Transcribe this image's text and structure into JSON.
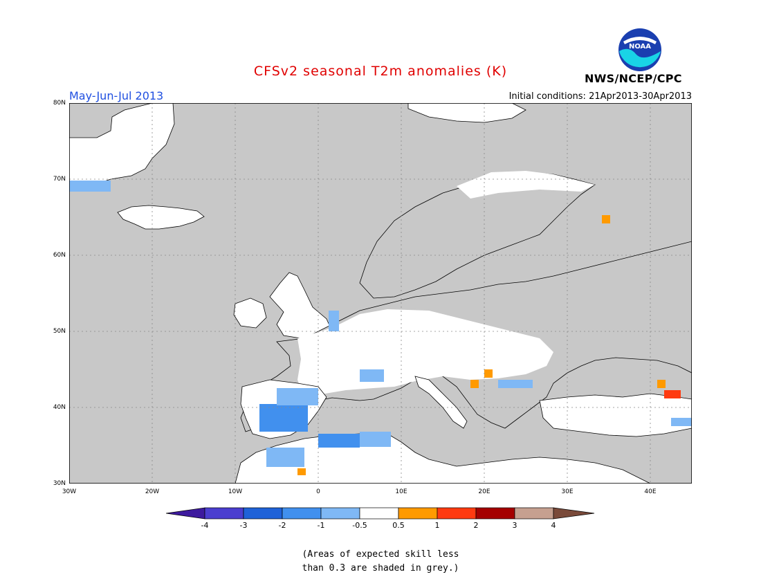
{
  "title": "CFSv2 seasonal T2m anomalies (K)",
  "period": "May-Jun-Jul 2013",
  "initial_conditions": "Initial conditions: 21Apr2013-30Apr2013",
  "agency": "NWS/NCEP/CPC",
  "logo_text": "NOAA",
  "map": {
    "lat_ticks": [
      "80N",
      "70N",
      "60N",
      "50N",
      "40N",
      "30N"
    ],
    "lon_ticks": [
      "30W",
      "20W",
      "10W",
      "0",
      "10E",
      "20E",
      "30E",
      "40E"
    ],
    "lon_range": [
      -30,
      45
    ],
    "lat_range": [
      30,
      80
    ],
    "grid_style": "dotted",
    "colors": {
      "grey": "#c8c8c8",
      "white": "#ffffff",
      "ocean": "#c8c8c8"
    }
  },
  "colorbar": {
    "labels": [
      "-4",
      "-3",
      "-2",
      "-1",
      "-0.5",
      "0.5",
      "1",
      "2",
      "3",
      "4"
    ],
    "colors": [
      "#3d1a9e",
      "#4b3ecf",
      "#1f62d8",
      "#4190ee",
      "#7fb8f5",
      "#ffffff",
      "#ff9a00",
      "#ff3a10",
      "#a50000",
      "#c6a090",
      "#7a4a3a"
    ]
  },
  "note": {
    "line1": "(Areas of expected skill less",
    "line2": "than 0.3 are shaded in grey.)"
  }
}
